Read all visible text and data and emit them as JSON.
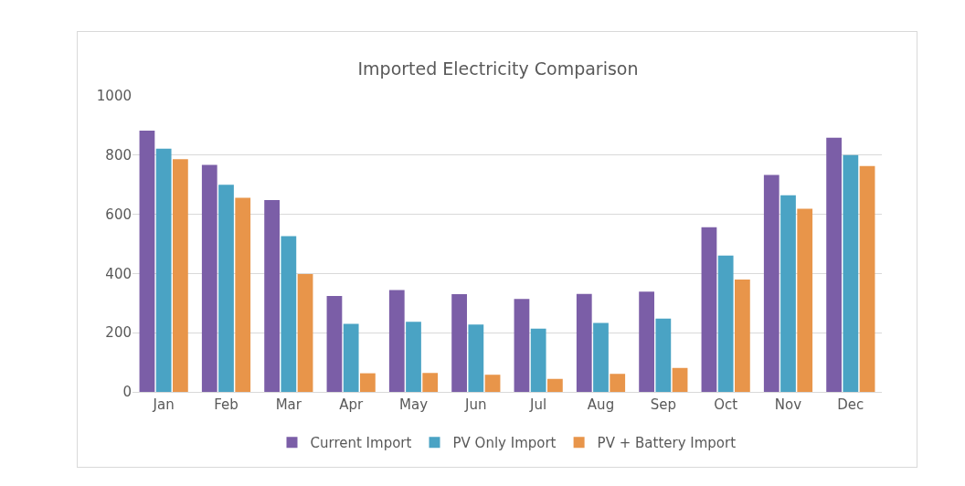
{
  "chart_data": {
    "type": "bar",
    "title": "Imported Electricity Comparison",
    "categories": [
      "Jan",
      "Feb",
      "Mar",
      "Apr",
      "May",
      "Jun",
      "Jul",
      "Aug",
      "Sep",
      "Oct",
      "Nov",
      "Dec"
    ],
    "series": [
      {
        "name": "Current Import",
        "color": "#7b5ea7",
        "values": [
          883,
          767,
          648,
          324,
          344,
          330,
          314,
          331,
          339,
          556,
          733,
          859
        ]
      },
      {
        "name": "PV Only Import",
        "color": "#4aa3c4",
        "values": [
          822,
          700,
          526,
          230,
          237,
          228,
          214,
          233,
          248,
          461,
          664,
          800
        ]
      },
      {
        "name": "PV + Battery Import",
        "color": "#e8954a",
        "values": [
          786,
          656,
          398,
          63,
          64,
          58,
          44,
          61,
          81,
          380,
          619,
          763
        ]
      }
    ],
    "ylim": [
      0,
      1000
    ],
    "yticks": [
      0,
      200,
      400,
      600,
      800,
      1000
    ],
    "grid": "y",
    "legend": "bottom"
  }
}
